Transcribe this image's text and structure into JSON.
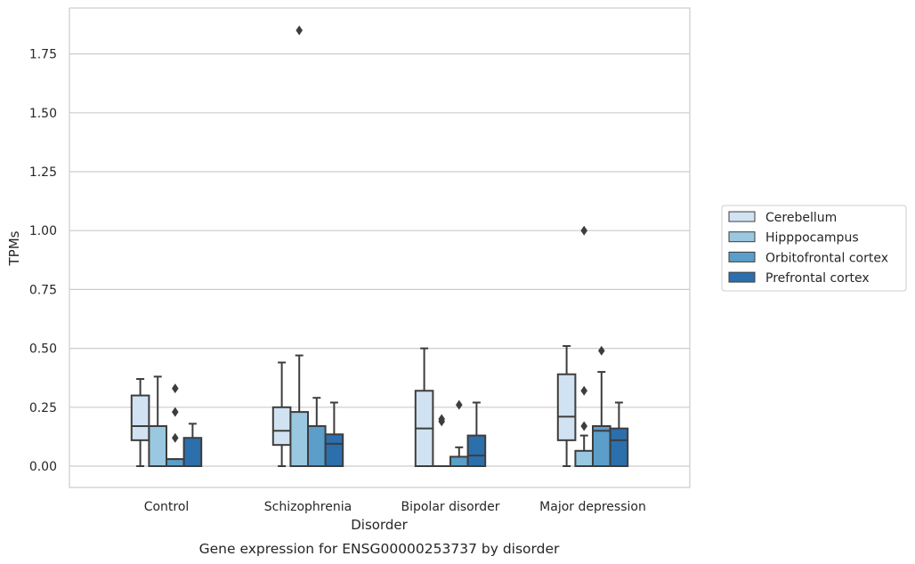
{
  "chart_data": {
    "type": "box",
    "xlabel": "Disorder",
    "ylabel": "TPMs",
    "caption": "Gene expression for ENSG00000253737 by disorder",
    "categories": [
      "Control",
      "Schizophrenia",
      "Bipolar disorder",
      "Major depression"
    ],
    "ylim": [
      -0.09,
      1.95
    ],
    "yticks": [
      "0.00",
      "0.25",
      "0.50",
      "0.75",
      "1.00",
      "1.25",
      "1.50",
      "1.75"
    ],
    "grid": "horizontal",
    "legend_position": "right",
    "series": [
      {
        "name": "Cerebellum",
        "color": "#d1e2f2",
        "boxes": [
          {
            "whisker_low": 0.0,
            "q1": 0.11,
            "median": 0.17,
            "q3": 0.3,
            "whisker_high": 0.37,
            "outliers": []
          },
          {
            "whisker_low": 0.0,
            "q1": 0.09,
            "median": 0.15,
            "q3": 0.25,
            "whisker_high": 0.44,
            "outliers": []
          },
          {
            "whisker_low": 0.0,
            "q1": 0.0,
            "median": 0.16,
            "q3": 0.32,
            "whisker_high": 0.5,
            "outliers": []
          },
          {
            "whisker_low": 0.0,
            "q1": 0.11,
            "median": 0.21,
            "q3": 0.39,
            "whisker_high": 0.51,
            "outliers": []
          }
        ]
      },
      {
        "name": "Hipppocampus",
        "color": "#9ac8e0",
        "boxes": [
          {
            "whisker_low": 0.0,
            "q1": 0.0,
            "median": 0.0,
            "q3": 0.17,
            "whisker_high": 0.38,
            "outliers": []
          },
          {
            "whisker_low": 0.0,
            "q1": 0.0,
            "median": 0.0,
            "q3": 0.23,
            "whisker_high": 0.47,
            "outliers": [
              1.85
            ]
          },
          {
            "whisker_low": 0.0,
            "q1": 0.0,
            "median": 0.0,
            "q3": 0.0,
            "whisker_high": 0.0,
            "outliers": [
              0.19,
              0.2
            ]
          },
          {
            "whisker_low": 0.0,
            "q1": 0.0,
            "median": 0.0,
            "q3": 0.065,
            "whisker_high": 0.13,
            "outliers": [
              0.17,
              0.32,
              1.0
            ]
          }
        ]
      },
      {
        "name": "Orbitofrontal cortex",
        "color": "#5a9ec9",
        "boxes": [
          {
            "whisker_low": 0.0,
            "q1": 0.0,
            "median": 0.0,
            "q3": 0.03,
            "whisker_high": 0.03,
            "outliers": [
              0.12,
              0.23,
              0.33
            ]
          },
          {
            "whisker_low": 0.0,
            "q1": 0.0,
            "median": 0.0,
            "q3": 0.17,
            "whisker_high": 0.29,
            "outliers": []
          },
          {
            "whisker_low": 0.0,
            "q1": 0.0,
            "median": 0.0,
            "q3": 0.04,
            "whisker_high": 0.08,
            "outliers": [
              0.26
            ]
          },
          {
            "whisker_low": 0.0,
            "q1": 0.0,
            "median": 0.15,
            "q3": 0.17,
            "whisker_high": 0.4,
            "outliers": [
              0.49
            ]
          }
        ]
      },
      {
        "name": "Prefrontal cortex",
        "color": "#2c6fad",
        "boxes": [
          {
            "whisker_low": 0.0,
            "q1": 0.0,
            "median": 0.0,
            "q3": 0.12,
            "whisker_high": 0.18,
            "outliers": []
          },
          {
            "whisker_low": 0.0,
            "q1": 0.0,
            "median": 0.095,
            "q3": 0.135,
            "whisker_high": 0.27,
            "outliers": []
          },
          {
            "whisker_low": 0.0,
            "q1": 0.0,
            "median": 0.045,
            "q3": 0.13,
            "whisker_high": 0.27,
            "outliers": []
          },
          {
            "whisker_low": 0.0,
            "q1": 0.0,
            "median": 0.11,
            "q3": 0.16,
            "whisker_high": 0.27,
            "outliers": []
          }
        ]
      }
    ]
  }
}
